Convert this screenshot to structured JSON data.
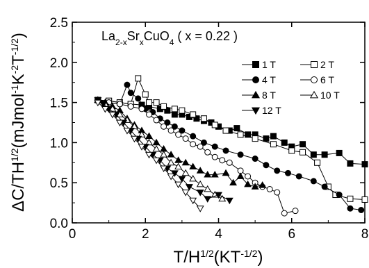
{
  "chart_data": {
    "type": "scatter",
    "title_parts": {
      "formula_base": "La",
      "formula_sub1": "2-x",
      "formula_mid": "Sr",
      "formula_sub2": "x",
      "formula_end": "CuO",
      "formula_sub3": "4",
      "condition": " ( x = 0.22 )"
    },
    "xlabel": {
      "main": "T/H",
      "sup1": "1/2",
      "unit_open": "(KT",
      "sup2": "-1/2",
      "unit_close": ")"
    },
    "ylabel": {
      "main": "ΔC/TH",
      "sup1": "1/2",
      "unit_open": "(mJmol",
      "sup2": "-1",
      "unit_mid": "K",
      "sup3": "-2",
      "unit_t": "T",
      "sup4": "-1/2",
      "unit_close": ")"
    },
    "xlim": [
      0,
      8
    ],
    "ylim": [
      0,
      2.5
    ],
    "x_ticks": [
      0,
      2,
      4,
      6,
      8
    ],
    "y_ticks": [
      0.0,
      0.5,
      1.0,
      1.5,
      2.0,
      2.5
    ],
    "x_tick_labels": [
      "0",
      "2",
      "4",
      "6",
      "8"
    ],
    "y_tick_labels": [
      "0.0",
      "0.5",
      "1.0",
      "1.5",
      "2.0",
      "2.5"
    ],
    "legend_position": "top-right",
    "series": [
      {
        "name": "1 T",
        "marker": "square",
        "filled": true,
        "points": [
          [
            0.7,
            1.53
          ],
          [
            1.0,
            1.52
          ],
          [
            1.3,
            1.5
          ],
          [
            1.6,
            1.48
          ],
          [
            1.9,
            1.47
          ],
          [
            2.1,
            1.45
          ],
          [
            2.4,
            1.42
          ],
          [
            2.6,
            1.4
          ],
          [
            2.8,
            1.35
          ],
          [
            3.0,
            1.35
          ],
          [
            3.2,
            1.32
          ],
          [
            3.4,
            1.3
          ],
          [
            3.6,
            1.27
          ],
          [
            3.8,
            1.25
          ],
          [
            4.0,
            1.2
          ],
          [
            4.3,
            1.15
          ],
          [
            4.5,
            1.18
          ],
          [
            4.8,
            1.1
          ],
          [
            5.0,
            1.1
          ],
          [
            5.3,
            1.05
          ],
          [
            5.5,
            1.08
          ],
          [
            5.8,
            1.0
          ],
          [
            6.0,
            0.95
          ],
          [
            6.3,
            0.98
          ],
          [
            6.6,
            0.85
          ],
          [
            6.9,
            0.85
          ],
          [
            7.3,
            0.87
          ],
          [
            7.6,
            0.74
          ],
          [
            8.0,
            0.73
          ]
        ]
      },
      {
        "name": "2 T",
        "marker": "square",
        "filled": false,
        "points": [
          [
            0.7,
            1.53
          ],
          [
            1.0,
            1.52
          ],
          [
            1.3,
            1.5
          ],
          [
            1.6,
            1.48
          ],
          [
            1.8,
            1.8
          ],
          [
            2.0,
            1.6
          ],
          [
            2.1,
            1.5
          ],
          [
            2.3,
            1.5
          ],
          [
            2.5,
            1.45
          ],
          [
            2.8,
            1.42
          ],
          [
            3.0,
            1.4
          ],
          [
            3.3,
            1.35
          ],
          [
            3.6,
            1.3
          ],
          [
            3.9,
            1.22
          ],
          [
            4.2,
            1.15
          ],
          [
            4.6,
            1.1
          ],
          [
            5.0,
            1.05
          ],
          [
            5.5,
            0.98
          ],
          [
            6.0,
            0.9
          ],
          [
            6.3,
            0.88
          ],
          [
            6.7,
            0.75
          ],
          [
            7.0,
            0.45
          ],
          [
            7.2,
            0.35
          ],
          [
            7.6,
            0.3
          ],
          [
            8.0,
            0.29
          ]
        ]
      },
      {
        "name": "4 T",
        "marker": "circle",
        "filled": true,
        "points": [
          [
            0.7,
            1.53
          ],
          [
            1.0,
            1.5
          ],
          [
            1.3,
            1.48
          ],
          [
            1.5,
            1.72
          ],
          [
            1.6,
            1.62
          ],
          [
            1.8,
            1.55
          ],
          [
            2.0,
            1.42
          ],
          [
            2.2,
            1.38
          ],
          [
            2.4,
            1.3
          ],
          [
            2.6,
            1.25
          ],
          [
            2.8,
            1.2
          ],
          [
            3.0,
            1.15
          ],
          [
            3.3,
            1.08
          ],
          [
            3.6,
            1.0
          ],
          [
            3.9,
            0.95
          ],
          [
            4.2,
            0.9
          ],
          [
            4.6,
            0.85
          ],
          [
            5.0,
            0.8
          ],
          [
            5.3,
            0.72
          ],
          [
            5.6,
            0.65
          ],
          [
            5.9,
            0.62
          ],
          [
            6.2,
            0.58
          ],
          [
            6.6,
            0.52
          ],
          [
            6.9,
            0.45
          ],
          [
            7.3,
            0.35
          ],
          [
            7.6,
            0.18
          ],
          [
            7.9,
            0.16
          ]
        ]
      },
      {
        "name": "6 T",
        "marker": "circle",
        "filled": false,
        "points": [
          [
            0.7,
            1.53
          ],
          [
            1.0,
            1.5
          ],
          [
            1.3,
            1.48
          ],
          [
            1.6,
            1.45
          ],
          [
            1.9,
            1.42
          ],
          [
            2.1,
            1.35
          ],
          [
            2.3,
            1.28
          ],
          [
            2.5,
            1.2
          ],
          [
            2.7,
            1.15
          ],
          [
            2.9,
            1.1
          ],
          [
            3.1,
            1.05
          ],
          [
            3.3,
            0.98
          ],
          [
            3.5,
            0.95
          ],
          [
            3.7,
            0.88
          ],
          [
            3.9,
            0.82
          ],
          [
            4.1,
            0.78
          ],
          [
            4.3,
            0.75
          ],
          [
            4.6,
            0.65
          ],
          [
            4.8,
            0.58
          ],
          [
            5.0,
            0.5
          ],
          [
            5.2,
            0.45
          ],
          [
            5.4,
            0.42
          ],
          [
            5.6,
            0.38
          ],
          [
            5.8,
            0.12
          ],
          [
            6.1,
            0.15
          ]
        ]
      },
      {
        "name": "8 T",
        "marker": "triangle-up",
        "filled": true,
        "points": [
          [
            0.7,
            1.53
          ],
          [
            0.9,
            1.5
          ],
          [
            1.1,
            1.45
          ],
          [
            1.3,
            1.4
          ],
          [
            1.5,
            1.3
          ],
          [
            1.7,
            1.22
          ],
          [
            1.9,
            1.15
          ],
          [
            2.1,
            1.08
          ],
          [
            2.3,
            1.0
          ],
          [
            2.5,
            0.92
          ],
          [
            2.7,
            0.85
          ],
          [
            2.9,
            0.78
          ],
          [
            3.1,
            0.75
          ],
          [
            3.3,
            0.7
          ],
          [
            3.5,
            0.65
          ],
          [
            3.7,
            0.6
          ],
          [
            3.9,
            0.6
          ],
          [
            4.2,
            0.62
          ],
          [
            4.4,
            0.5
          ],
          [
            4.6,
            0.58
          ],
          [
            4.8,
            0.48
          ],
          [
            5.0,
            0.45
          ],
          [
            5.2,
            0.47
          ]
        ]
      },
      {
        "name": "10 T",
        "marker": "triangle-up",
        "filled": false,
        "points": [
          [
            0.7,
            1.53
          ],
          [
            0.9,
            1.48
          ],
          [
            1.1,
            1.42
          ],
          [
            1.3,
            1.35
          ],
          [
            1.5,
            1.28
          ],
          [
            1.7,
            1.2
          ],
          [
            1.9,
            1.1
          ],
          [
            2.1,
            1.0
          ],
          [
            2.3,
            0.92
          ],
          [
            2.5,
            0.85
          ],
          [
            2.7,
            0.75
          ],
          [
            2.9,
            0.7
          ],
          [
            3.1,
            0.62
          ],
          [
            3.3,
            0.55
          ],
          [
            3.5,
            0.48
          ],
          [
            3.7,
            0.42
          ],
          [
            3.9,
            0.35
          ],
          [
            4.1,
            0.3
          ]
        ]
      },
      {
        "name": "12 T",
        "marker": "triangle-down",
        "filled": true,
        "points": [
          [
            0.7,
            1.53
          ],
          [
            0.85,
            1.48
          ],
          [
            1.0,
            1.42
          ],
          [
            1.2,
            1.35
          ],
          [
            1.4,
            1.25
          ],
          [
            1.6,
            1.15
          ],
          [
            1.8,
            1.05
          ],
          [
            2.0,
            0.95
          ],
          [
            2.2,
            0.85
          ],
          [
            2.4,
            0.78
          ],
          [
            2.6,
            0.68
          ],
          [
            2.8,
            0.62
          ],
          [
            3.0,
            0.55
          ],
          [
            3.2,
            0.45
          ],
          [
            3.5,
            0.38
          ],
          [
            3.7,
            0.3
          ],
          [
            4.0,
            0.35
          ],
          [
            4.3,
            0.28
          ]
        ]
      },
      {
        "name": "",
        "marker": "triangle-down",
        "filled": false,
        "points": [
          [
            0.7,
            1.5
          ],
          [
            0.9,
            1.42
          ],
          [
            1.1,
            1.35
          ],
          [
            1.3,
            1.25
          ],
          [
            1.5,
            1.15
          ],
          [
            1.7,
            1.05
          ],
          [
            1.9,
            0.95
          ],
          [
            2.1,
            0.85
          ],
          [
            2.3,
            0.78
          ],
          [
            2.5,
            0.68
          ],
          [
            2.7,
            0.58
          ],
          [
            2.9,
            0.48
          ],
          [
            3.1,
            0.38
          ],
          [
            3.3,
            0.28
          ],
          [
            3.5,
            0.18
          ]
        ]
      }
    ],
    "legend_entries": [
      {
        "label": "1 T",
        "marker": "square",
        "filled": true
      },
      {
        "label": "2 T",
        "marker": "square",
        "filled": false
      },
      {
        "label": "4 T",
        "marker": "circle",
        "filled": true
      },
      {
        "label": "6 T",
        "marker": "circle",
        "filled": false
      },
      {
        "label": "8 T",
        "marker": "triangle-up",
        "filled": true
      },
      {
        "label": "10 T",
        "marker": "triangle-up",
        "filled": false
      },
      {
        "label": "12 T",
        "marker": "triangle-down",
        "filled": true
      }
    ],
    "colors": {
      "ink": "#000000",
      "background": "#ffffff"
    }
  }
}
